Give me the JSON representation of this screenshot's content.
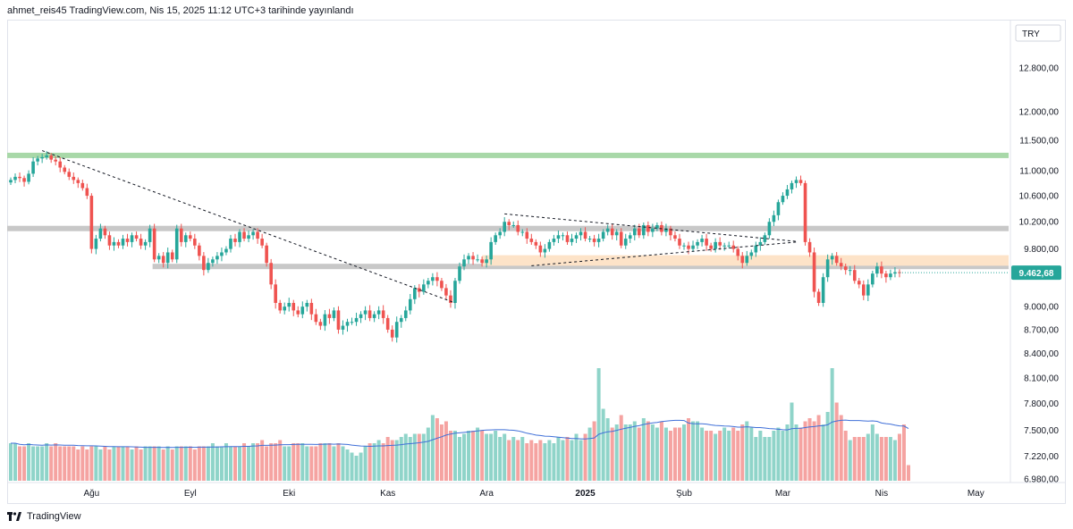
{
  "header": {
    "publish_text": "ahmet_reis45 TradingView.com, Nis 15, 2025 11:12 UTC+3 tarihinde yayınlandı"
  },
  "footer": {
    "brand": "TradingView"
  },
  "chart_data": {
    "type": "candlestick",
    "currency": "TRY",
    "last_price": 9462.68,
    "last_price_label": "9.462,68",
    "colors": {
      "up": "#26a69a",
      "down": "#ef5350",
      "vol_up": "#8fd4c9",
      "vol_down": "#f5a3a1",
      "vol_ma": "#3f6fd8",
      "last_price": "#26a69a",
      "resistance": "#a8d8a8",
      "support": "#c8c8c8",
      "zone": "#fde3c8"
    },
    "y_axis": {
      "ticks": [
        {
          "v": 12800,
          "label": "12.800,00"
        },
        {
          "v": 12000,
          "label": "12.000,00"
        },
        {
          "v": 11500,
          "label": "11.500,00"
        },
        {
          "v": 11000,
          "label": "11.000,00"
        },
        {
          "v": 10600,
          "label": "10.600,00"
        },
        {
          "v": 10200,
          "label": "10.200,00"
        },
        {
          "v": 9800,
          "label": "9.800,00"
        },
        {
          "v": 9000,
          "label": "9.000,00"
        },
        {
          "v": 8700,
          "label": "8.700,00"
        },
        {
          "v": 8400,
          "label": "8.400,00"
        },
        {
          "v": 8100,
          "label": "8.100,00"
        },
        {
          "v": 7800,
          "label": "7.800,00"
        },
        {
          "v": 7500,
          "label": "7.500,00"
        },
        {
          "v": 7220,
          "label": "7.220,00"
        },
        {
          "v": 6980,
          "label": "6.980,00"
        }
      ]
    },
    "x_axis": {
      "labels": [
        {
          "text": "Ağu",
          "bar": 18,
          "bold": false
        },
        {
          "text": "Eyl",
          "bar": 40,
          "bold": false
        },
        {
          "text": "Eki",
          "bar": 62,
          "bold": false
        },
        {
          "text": "Kas",
          "bar": 84,
          "bold": false
        },
        {
          "text": "Ara",
          "bar": 106,
          "bold": false
        },
        {
          "text": "2025",
          "bar": 128,
          "bold": true
        },
        {
          "text": "Şub",
          "bar": 150,
          "bold": false
        },
        {
          "text": "Mar",
          "bar": 172,
          "bold": false
        },
        {
          "text": "Nis",
          "bar": 194,
          "bold": false
        },
        {
          "text": "May",
          "bar": 215,
          "bold": false
        }
      ]
    },
    "levels": [
      {
        "name": "resistance",
        "price": 11250
      },
      {
        "name": "support-upper",
        "price": 10100
      },
      {
        "name": "support-lower",
        "price": 9550,
        "start_bar": 32
      }
    ],
    "zone": {
      "from": 9560,
      "to": 9710,
      "start_bar": 105
    },
    "trendlines": [
      {
        "from": [
          7,
          11330
        ],
        "to": [
          99,
          9050
        ]
      },
      {
        "from": [
          110,
          10320
        ],
        "to": [
          175,
          9910
        ]
      },
      {
        "from": [
          116,
          9560
        ],
        "to": [
          175,
          9900
        ]
      }
    ],
    "closes": [
      10850,
      10900,
      10880,
      10820,
      10950,
      11150,
      11200,
      11220,
      11250,
      11180,
      11150,
      11050,
      10980,
      10900,
      10850,
      10800,
      10720,
      10600,
      9800,
      9950,
      10100,
      10000,
      9850,
      9900,
      9850,
      9950,
      9900,
      10000,
      9950,
      9850,
      9900,
      10100,
      9650,
      9700,
      9600,
      9750,
      9650,
      10100,
      9900,
      10000,
      9950,
      9850,
      9700,
      9500,
      9600,
      9650,
      9700,
      9750,
      9800,
      9950,
      9900,
      10050,
      9950,
      10000,
      10050,
      9950,
      9850,
      9600,
      9300,
      9050,
      8950,
      9000,
      9050,
      8950,
      8900,
      9000,
      9050,
      8900,
      8800,
      8750,
      8900,
      8850,
      8950,
      8700,
      8750,
      8800,
      8800,
      8850,
      8900,
      8950,
      8850,
      8900,
      8950,
      8850,
      8700,
      8600,
      8800,
      8850,
      8950,
      9100,
      9250,
      9200,
      9300,
      9350,
      9400,
      9350,
      9250,
      9150,
      9050,
      9350,
      9550,
      9650,
      9700,
      9650,
      9650,
      9600,
      9650,
      9900,
      10000,
      10050,
      10200,
      10150,
      10150,
      10050,
      10050,
      9950,
      9900,
      9850,
      9750,
      9800,
      9900,
      9950,
      10000,
      10000,
      9900,
      9950,
      10000,
      10050,
      9950,
      9950,
      9900,
      9950,
      10050,
      10100,
      10000,
      10050,
      9850,
      9950,
      10000,
      10100,
      10000,
      10150,
      10050,
      10100,
      10150,
      10050,
      10100,
      10000,
      9950,
      9850,
      9850,
      9800,
      9850,
      9900,
      9950,
      9850,
      9800,
      9900,
      9850,
      9850,
      9850,
      9800,
      9700,
      9600,
      9700,
      9750,
      9850,
      9900,
      10000,
      10200,
      10300,
      10500,
      10600,
      10700,
      10800,
      10850,
      10800,
      9900,
      9750,
      9200,
      9050,
      9400,
      9650,
      9700,
      9600,
      9550,
      9500,
      9500,
      9350,
      9300,
      9150,
      9300,
      9450,
      9550,
      9450,
      9400,
      9450,
      9470,
      9462.68
    ],
    "volumes": [
      12,
      12,
      11,
      11,
      12,
      11,
      11,
      11,
      12,
      11,
      12,
      11,
      11,
      11,
      11,
      10,
      11,
      10,
      11,
      11,
      10,
      11,
      10,
      11,
      11,
      11,
      11,
      10,
      11,
      10,
      11,
      11,
      11,
      11,
      10,
      11,
      10,
      11,
      11,
      11,
      11,
      10,
      11,
      11,
      11,
      12,
      11,
      11,
      12,
      11,
      11,
      11,
      12,
      11,
      12,
      12,
      13,
      11,
      12,
      12,
      13,
      11,
      11,
      12,
      12,
      12,
      11,
      11,
      11,
      12,
      12,
      12,
      11,
      12,
      11,
      10,
      9,
      8,
      9,
      11,
      12,
      12,
      13,
      12,
      14,
      13,
      13,
      14,
      15,
      14,
      15,
      15,
      15,
      17,
      21,
      20,
      18,
      19,
      16,
      16,
      14,
      15,
      16,
      16,
      17,
      16,
      15,
      15,
      16,
      14,
      15,
      13,
      14,
      13,
      14,
      12,
      13,
      12,
      13,
      12,
      13,
      12,
      14,
      13,
      14,
      13,
      15,
      13,
      15,
      17,
      19,
      36,
      23,
      20,
      17,
      18,
      21,
      18,
      18,
      19,
      17,
      20,
      19,
      18,
      17,
      19,
      17,
      16,
      17,
      17,
      18,
      20,
      19,
      19,
      17,
      16,
      16,
      15,
      16,
      17,
      16,
      17,
      16,
      18,
      19,
      17,
      14,
      16,
      14,
      14,
      16,
      17,
      16,
      18,
      25,
      18,
      17,
      19,
      20,
      19,
      21,
      18,
      22,
      36,
      25,
      21,
      16,
      13,
      14,
      14,
      14,
      15,
      18,
      15,
      14,
      14,
      14,
      13,
      15,
      18,
      5
    ],
    "volume_ma_line": "20-period average of volume"
  }
}
